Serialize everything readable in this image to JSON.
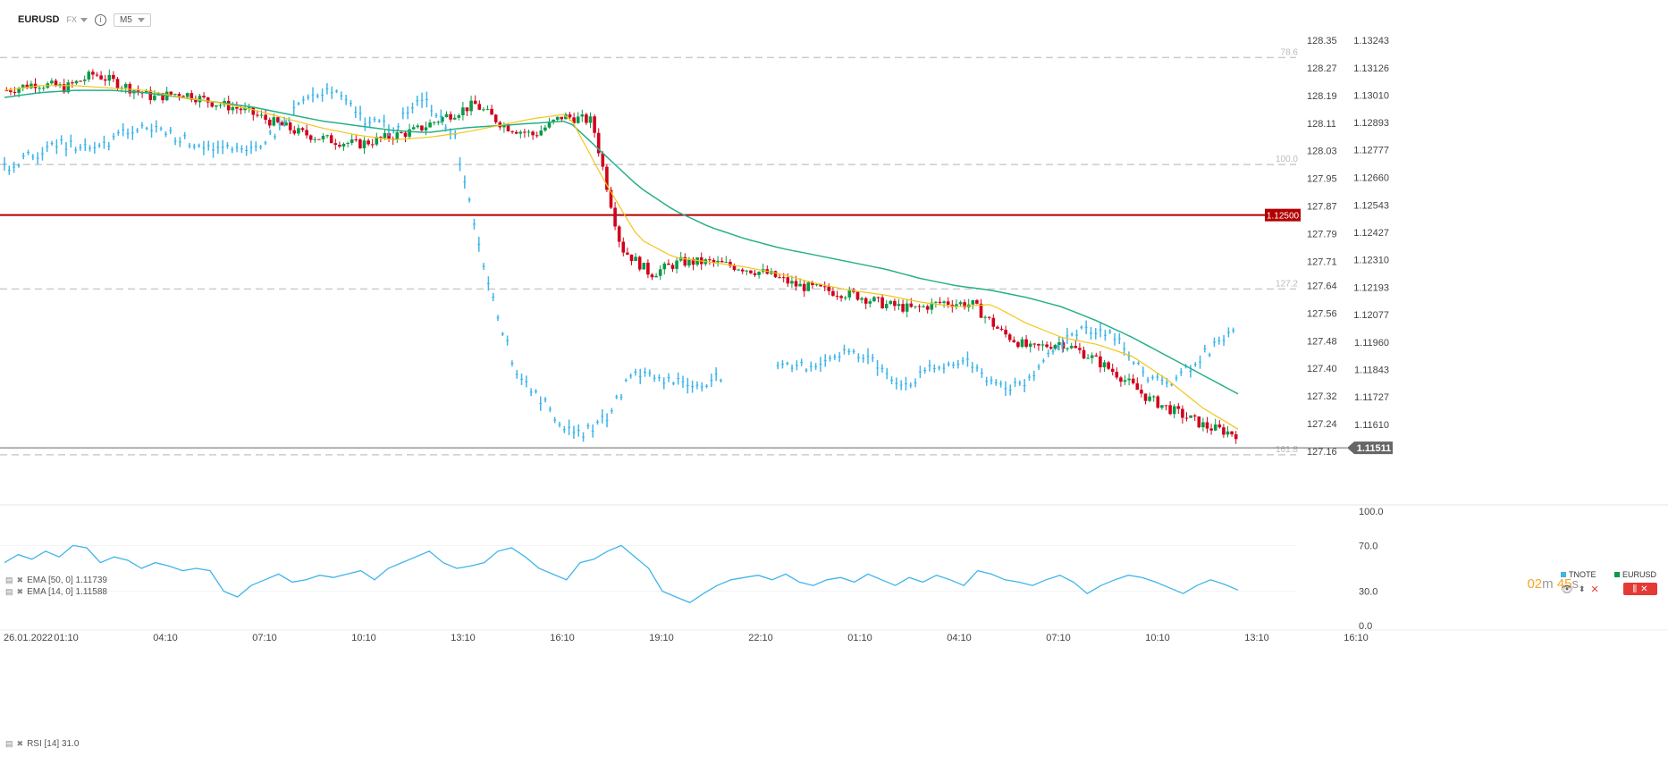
{
  "toolbar": {
    "symbol": "EURUSD",
    "market": "FX",
    "info_icon": "info-icon",
    "timeframe": "M5"
  },
  "colors": {
    "up": "#0a9a48",
    "down": "#d0021b",
    "ema50": "#26b08a",
    "ema14": "#f5c518",
    "tnote": "#3fb5ea",
    "level": "#b20000",
    "current": "#666666",
    "fib": "#cccccc"
  },
  "chart_data": [
    {
      "type": "line",
      "title": "",
      "x": [
        "01:10",
        "04:10",
        "07:10",
        "10:10",
        "13:10",
        "16:10",
        "19:10",
        "22:10",
        "01:10",
        "04:10",
        "07:10",
        "10:10",
        "13:10",
        "16:10"
      ],
      "x_first_label": "26.01.2022",
      "y_left_ticks": [
        "128.35",
        "128.27",
        "128.19",
        "128.11",
        "128.03",
        "127.95",
        "127.87",
        "127.79",
        "127.71",
        "127.64",
        "127.56",
        "127.48",
        "127.40",
        "127.32",
        "127.24",
        "127.16"
      ],
      "y_right_ticks": [
        "1.13243",
        "1.13126",
        "1.13010",
        "1.12893",
        "1.12777",
        "1.12660",
        "1.12543",
        "1.12427",
        "1.12310",
        "1.12193",
        "1.12077",
        "1.11960",
        "1.11843",
        "1.11727",
        "1.11610"
      ],
      "ylim_right": [
        1.1145,
        1.133
      ],
      "series": [
        {
          "name": "EURUSD",
          "kind": "candlestick",
          "close_path": [
            1.1303,
            1.1306,
            1.1304,
            1.131,
            1.1305,
            1.13,
            1.1302,
            1.1298,
            1.1295,
            1.129,
            1.1285,
            1.1282,
            1.128,
            1.1283,
            1.1286,
            1.1292,
            1.1297,
            1.1288,
            1.1284,
            1.1292,
            1.129,
            1.1236,
            1.1225,
            1.123,
            1.123,
            1.1228,
            1.1225,
            1.122,
            1.1218,
            1.1216,
            1.1212,
            1.121,
            1.1213,
            1.1212,
            1.12,
            1.1193,
            1.1196,
            1.119,
            1.1182,
            1.1172,
            1.1166,
            1.116,
            1.1157
          ]
        },
        {
          "name": "EMA [50, 0]",
          "value_label": "1.11739",
          "path": [
            1.13,
            1.1302,
            1.1303,
            1.1303,
            1.1302,
            1.13,
            1.1298,
            1.1296,
            1.1293,
            1.129,
            1.1288,
            1.1286,
            1.1285,
            1.1287,
            1.1288,
            1.1289,
            1.129,
            1.1276,
            1.1262,
            1.1252,
            1.1245,
            1.124,
            1.1236,
            1.1233,
            1.123,
            1.1227,
            1.1223,
            1.122,
            1.1218,
            1.1215,
            1.1211,
            1.1205,
            1.1198,
            1.119,
            1.1182,
            1.1174
          ]
        },
        {
          "name": "EMA [14, 0]",
          "value_label": "1.11588",
          "path": [
            1.1303,
            1.1305,
            1.1305,
            1.1304,
            1.1303,
            1.13,
            1.1298,
            1.1295,
            1.1291,
            1.1287,
            1.1284,
            1.1282,
            1.1283,
            1.1285,
            1.1288,
            1.1291,
            1.1293,
            1.1265,
            1.124,
            1.1232,
            1.123,
            1.1228,
            1.1225,
            1.1221,
            1.1218,
            1.1216,
            1.1213,
            1.1211,
            1.1212,
            1.1204,
            1.1198,
            1.1195,
            1.119,
            1.118,
            1.1168,
            1.1159
          ]
        },
        {
          "name": "TNOTE",
          "path_left_axis": [
            127.98,
            128.02,
            128.05,
            128.03,
            128.08,
            128.1,
            128.06,
            128.04,
            128.02,
            128.08,
            128.18,
            128.2,
            128.12,
            128.1,
            128.18,
            128.08,
            127.7,
            127.4,
            127.3,
            127.2,
            127.25,
            127.39,
            127.37,
            127.35,
            127.38,
            127.37,
            127.4,
            127.41,
            127.45,
            127.42,
            127.35,
            127.4,
            127.42,
            127.36,
            127.34,
            127.46,
            127.52,
            127.5,
            127.38,
            127.36,
            127.44,
            127.5
          ]
        }
      ],
      "levels": [
        {
          "label": "78.6",
          "value": 128.3
        },
        {
          "label": "100.0",
          "value": 127.99
        },
        {
          "label": "127.2",
          "value": 127.63
        },
        {
          "label": "161.8",
          "value": 127.15
        }
      ],
      "horizontal_line": {
        "label": "1.12500",
        "value": 1.125
      },
      "current_price": "1.11511"
    },
    {
      "type": "line",
      "title": "RSI [14]",
      "value_label": "31.0",
      "ylim": [
        0,
        100
      ],
      "y_ticks": [
        "100.0",
        "70.0",
        "30.0",
        "0.0"
      ],
      "values": [
        55,
        62,
        58,
        65,
        60,
        70,
        68,
        55,
        60,
        57,
        50,
        55,
        52,
        48,
        50,
        48,
        30,
        25,
        35,
        40,
        45,
        38,
        40,
        44,
        42,
        45,
        48,
        40,
        50,
        55,
        60,
        65,
        55,
        50,
        52,
        55,
        65,
        68,
        60,
        50,
        45,
        40,
        55,
        58,
        65,
        70,
        60,
        50,
        30,
        25,
        20,
        28,
        35,
        40,
        42,
        44,
        40,
        45,
        38,
        35,
        40,
        42,
        38,
        45,
        40,
        35,
        42,
        38,
        44,
        40,
        35,
        48,
        45,
        40,
        38,
        35,
        40,
        44,
        38,
        28,
        35,
        40,
        44,
        42,
        38,
        33,
        28,
        35,
        40,
        36,
        31
      ]
    }
  ],
  "legends": {
    "ema50": "EMA [50, 0]  1.11739",
    "ema14": "EMA [14, 0]  1.11588",
    "rsi": "RSI [14]  31.0"
  },
  "symbols": {
    "tnote": "TNOTE",
    "eurusd": "EURUSD"
  },
  "timer": {
    "min": "02",
    "min_unit": "m",
    "sec": "45",
    "sec_unit": "s"
  }
}
